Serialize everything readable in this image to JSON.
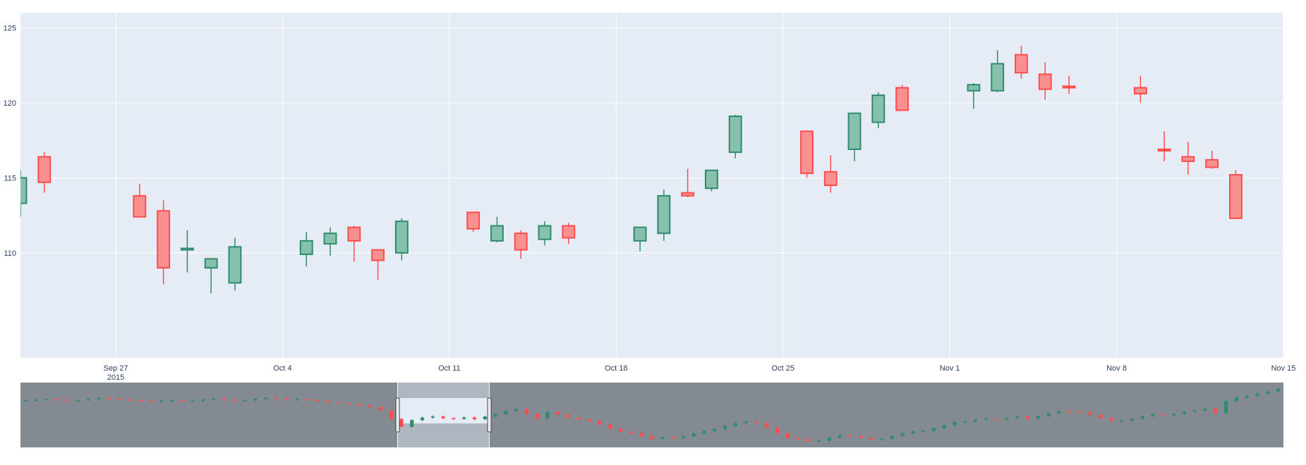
{
  "chart_data": {
    "type": "candlestick",
    "title": "",
    "xlabel": "",
    "ylabel": "",
    "ylim": [
      103,
      126
    ],
    "xrange": [
      "2015-09-23",
      "2015-11-15"
    ],
    "yticks": [
      110,
      115,
      120,
      125
    ],
    "xticks": [
      {
        "date": "2015-09-27",
        "label": "Sep 27",
        "sublabel": "2015"
      },
      {
        "date": "2015-10-04",
        "label": "Oct 4"
      },
      {
        "date": "2015-10-11",
        "label": "Oct 11"
      },
      {
        "date": "2015-10-18",
        "label": "Oct 18"
      },
      {
        "date": "2015-10-25",
        "label": "Oct 25"
      },
      {
        "date": "2015-11-01",
        "label": "Nov 1"
      },
      {
        "date": "2015-11-08",
        "label": "Nov 8"
      },
      {
        "date": "2015-11-15",
        "label": "Nov 15"
      }
    ],
    "grid": true,
    "legend": "none",
    "colors": {
      "increasing_line": "#2e8b6e",
      "increasing_fill": "#85c1ac",
      "decreasing_line": "#ff4d4d",
      "decreasing_fill": "#f99090",
      "plot_bg": "#e5ecf6",
      "grid": "#ffffff",
      "rangeslider_bg": "#848a92",
      "rangeslider_window": "#e5ecf6"
    },
    "candles": [
      {
        "date": "2015-09-23",
        "open": 113.3,
        "high": 115.5,
        "low": 112.4,
        "close": 115.0
      },
      {
        "date": "2015-09-24",
        "open": 116.4,
        "high": 116.7,
        "low": 114.0,
        "close": 114.7
      },
      {
        "date": "2015-09-28",
        "open": 113.8,
        "high": 114.6,
        "low": 112.4,
        "close": 112.4
      },
      {
        "date": "2015-09-29",
        "open": 112.8,
        "high": 113.5,
        "low": 107.9,
        "close": 109.0
      },
      {
        "date": "2015-09-30",
        "open": 110.2,
        "high": 111.5,
        "low": 108.7,
        "close": 110.3
      },
      {
        "date": "2015-10-01",
        "open": 109.0,
        "high": 109.6,
        "low": 107.3,
        "close": 109.6
      },
      {
        "date": "2015-10-02",
        "open": 108.0,
        "high": 111.0,
        "low": 107.5,
        "close": 110.4
      },
      {
        "date": "2015-10-05",
        "open": 109.9,
        "high": 111.4,
        "low": 109.1,
        "close": 110.8
      },
      {
        "date": "2015-10-06",
        "open": 110.6,
        "high": 111.7,
        "low": 109.8,
        "close": 111.3
      },
      {
        "date": "2015-10-07",
        "open": 111.7,
        "high": 111.8,
        "low": 109.4,
        "close": 110.8
      },
      {
        "date": "2015-10-08",
        "open": 110.2,
        "high": 110.2,
        "low": 108.2,
        "close": 109.5
      },
      {
        "date": "2015-10-09",
        "open": 110.0,
        "high": 112.3,
        "low": 109.5,
        "close": 112.1
      },
      {
        "date": "2015-10-12",
        "open": 112.7,
        "high": 112.7,
        "low": 111.4,
        "close": 111.6
      },
      {
        "date": "2015-10-13",
        "open": 110.8,
        "high": 112.4,
        "low": 110.7,
        "close": 111.8
      },
      {
        "date": "2015-10-14",
        "open": 111.3,
        "high": 111.5,
        "low": 109.6,
        "close": 110.2
      },
      {
        "date": "2015-10-15",
        "open": 110.9,
        "high": 112.1,
        "low": 110.5,
        "close": 111.8
      },
      {
        "date": "2015-10-16",
        "open": 111.8,
        "high": 112.0,
        "low": 110.6,
        "close": 111.0
      },
      {
        "date": "2015-10-19",
        "open": 110.8,
        "high": 111.7,
        "low": 110.1,
        "close": 111.7
      },
      {
        "date": "2015-10-20",
        "open": 111.3,
        "high": 114.2,
        "low": 110.8,
        "close": 113.8
      },
      {
        "date": "2015-10-21",
        "open": 114.0,
        "high": 115.6,
        "low": 113.7,
        "close": 113.8
      },
      {
        "date": "2015-10-22",
        "open": 114.3,
        "high": 115.5,
        "low": 114.1,
        "close": 115.5
      },
      {
        "date": "2015-10-23",
        "open": 116.7,
        "high": 119.2,
        "low": 116.3,
        "close": 119.1
      },
      {
        "date": "2015-10-26",
        "open": 118.1,
        "high": 118.1,
        "low": 115.0,
        "close": 115.3
      },
      {
        "date": "2015-10-27",
        "open": 115.4,
        "high": 116.5,
        "low": 114.0,
        "close": 114.5
      },
      {
        "date": "2015-10-28",
        "open": 116.9,
        "high": 119.3,
        "low": 116.1,
        "close": 119.3
      },
      {
        "date": "2015-10-29",
        "open": 118.7,
        "high": 120.7,
        "low": 118.3,
        "close": 120.5
      },
      {
        "date": "2015-10-30",
        "open": 121.0,
        "high": 121.2,
        "low": 119.5,
        "close": 119.5
      },
      {
        "date": "2015-11-02",
        "open": 120.8,
        "high": 121.3,
        "low": 119.6,
        "close": 121.2
      },
      {
        "date": "2015-11-03",
        "open": 120.8,
        "high": 123.5,
        "low": 120.7,
        "close": 122.6
      },
      {
        "date": "2015-11-04",
        "open": 123.2,
        "high": 123.8,
        "low": 121.6,
        "close": 122.0
      },
      {
        "date": "2015-11-05",
        "open": 121.9,
        "high": 122.7,
        "low": 120.2,
        "close": 120.9
      },
      {
        "date": "2015-11-06",
        "open": 121.1,
        "high": 121.8,
        "low": 120.6,
        "close": 121.0
      },
      {
        "date": "2015-11-09",
        "open": 121.0,
        "high": 121.8,
        "low": 120.0,
        "close": 120.6
      },
      {
        "date": "2015-11-10",
        "open": 116.9,
        "high": 118.1,
        "low": 116.1,
        "close": 116.8
      },
      {
        "date": "2015-11-11",
        "open": 116.4,
        "high": 117.4,
        "low": 115.2,
        "close": 116.1
      },
      {
        "date": "2015-11-12",
        "open": 116.2,
        "high": 116.8,
        "low": 115.6,
        "close": 115.7
      },
      {
        "date": "2015-11-13",
        "open": 115.2,
        "high": 115.5,
        "low": 112.3,
        "close": 112.3
      }
    ],
    "rangeslider": {
      "full_range": [
        "2015-02-17",
        "2017-02-16"
      ],
      "selected_range": [
        "2015-09-23",
        "2015-11-15"
      ],
      "overview_closes": [
        128,
        128.5,
        129,
        128.4,
        127.5,
        128,
        129,
        130,
        129.6,
        128.6,
        128,
        127.4,
        126.8,
        127.5,
        128,
        127.2,
        127.6,
        128.6,
        129.3,
        128.6,
        127.8,
        128,
        129.2,
        130.2,
        129.6,
        128.5,
        129.1,
        128.2,
        127.6,
        126.4,
        125.5,
        124.9,
        123.6,
        122.2,
        119.2,
        112.0,
        105.3,
        111.0,
        113.2,
        114.2,
        112.7,
        112.2,
        113.3,
        111.8,
        114.1,
        116.3,
        118.9,
        120.5,
        116.4,
        112.3,
        118.0,
        116.0,
        113.2,
        111.7,
        110.3,
        107.1,
        103.6,
        101.0,
        99.8,
        97.4,
        94.8,
        96.1,
        95.9,
        97.2,
        99.6,
        101.7,
        103.4,
        106.1,
        108.5,
        109.8,
        108.6,
        104.6,
        99.8,
        95.9,
        94.8,
        93.1,
        93.5,
        96.1,
        97.9,
        97.3,
        95.8,
        94.3,
        95.0,
        97.5,
        99.8,
        101.5,
        101.8,
        104.1,
        106.6,
        109.4,
        109.7,
        111.4,
        112.1,
        111.8,
        112.9,
        114.0,
        112.3,
        114.5,
        116.9,
        118.7,
        118.5,
        117.8,
        115.6,
        112.9,
        110.6,
        110.7,
        112.2,
        114.3,
        116.0,
        115.3,
        116.5,
        118.3,
        119.3,
        120.7,
        117.1,
        127.2,
        130.3,
        131.9,
        133.6,
        135.4,
        137.8
      ]
    }
  }
}
